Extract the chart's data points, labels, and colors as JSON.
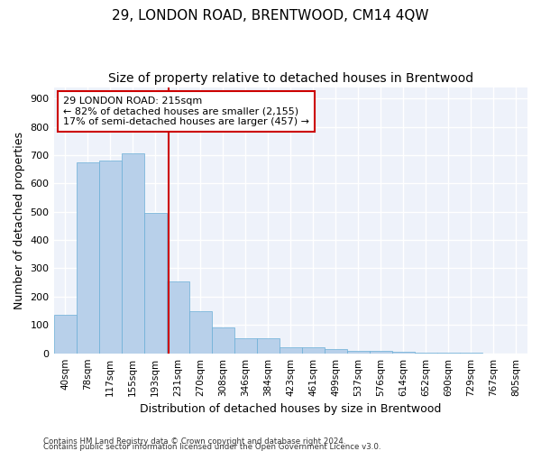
{
  "title": "29, LONDON ROAD, BRENTWOOD, CM14 4QW",
  "subtitle": "Size of property relative to detached houses in Brentwood",
  "xlabel": "Distribution of detached houses by size in Brentwood",
  "ylabel": "Number of detached properties",
  "footnote1": "Contains HM Land Registry data © Crown copyright and database right 2024.",
  "footnote2": "Contains public sector information licensed under the Open Government Licence v3.0.",
  "bar_labels": [
    "40sqm",
    "78sqm",
    "117sqm",
    "155sqm",
    "193sqm",
    "231sqm",
    "270sqm",
    "308sqm",
    "346sqm",
    "384sqm",
    "423sqm",
    "461sqm",
    "499sqm",
    "537sqm",
    "576sqm",
    "614sqm",
    "652sqm",
    "690sqm",
    "729sqm",
    "767sqm",
    "805sqm"
  ],
  "bar_values": [
    135,
    675,
    680,
    705,
    495,
    255,
    150,
    90,
    52,
    52,
    22,
    22,
    15,
    8,
    8,
    5,
    3,
    2,
    1,
    0.5,
    0.5
  ],
  "bar_color": "#b8d0ea",
  "bar_edgecolor": "#6aaed6",
  "annotation_line1": "29 LONDON ROAD: 215sqm",
  "annotation_line2": "← 82% of detached houses are smaller (2,155)",
  "annotation_line3": "17% of semi-detached houses are larger (457) →",
  "vline_color": "#cc0000",
  "annotation_box_edgecolor": "#cc0000",
  "ylim": [
    0,
    940
  ],
  "yticks": [
    0,
    100,
    200,
    300,
    400,
    500,
    600,
    700,
    800,
    900
  ],
  "bg_color": "#eef2fa",
  "grid_color": "#ffffff",
  "title_fontsize": 11,
  "subtitle_fontsize": 10,
  "axis_label_fontsize": 9
}
